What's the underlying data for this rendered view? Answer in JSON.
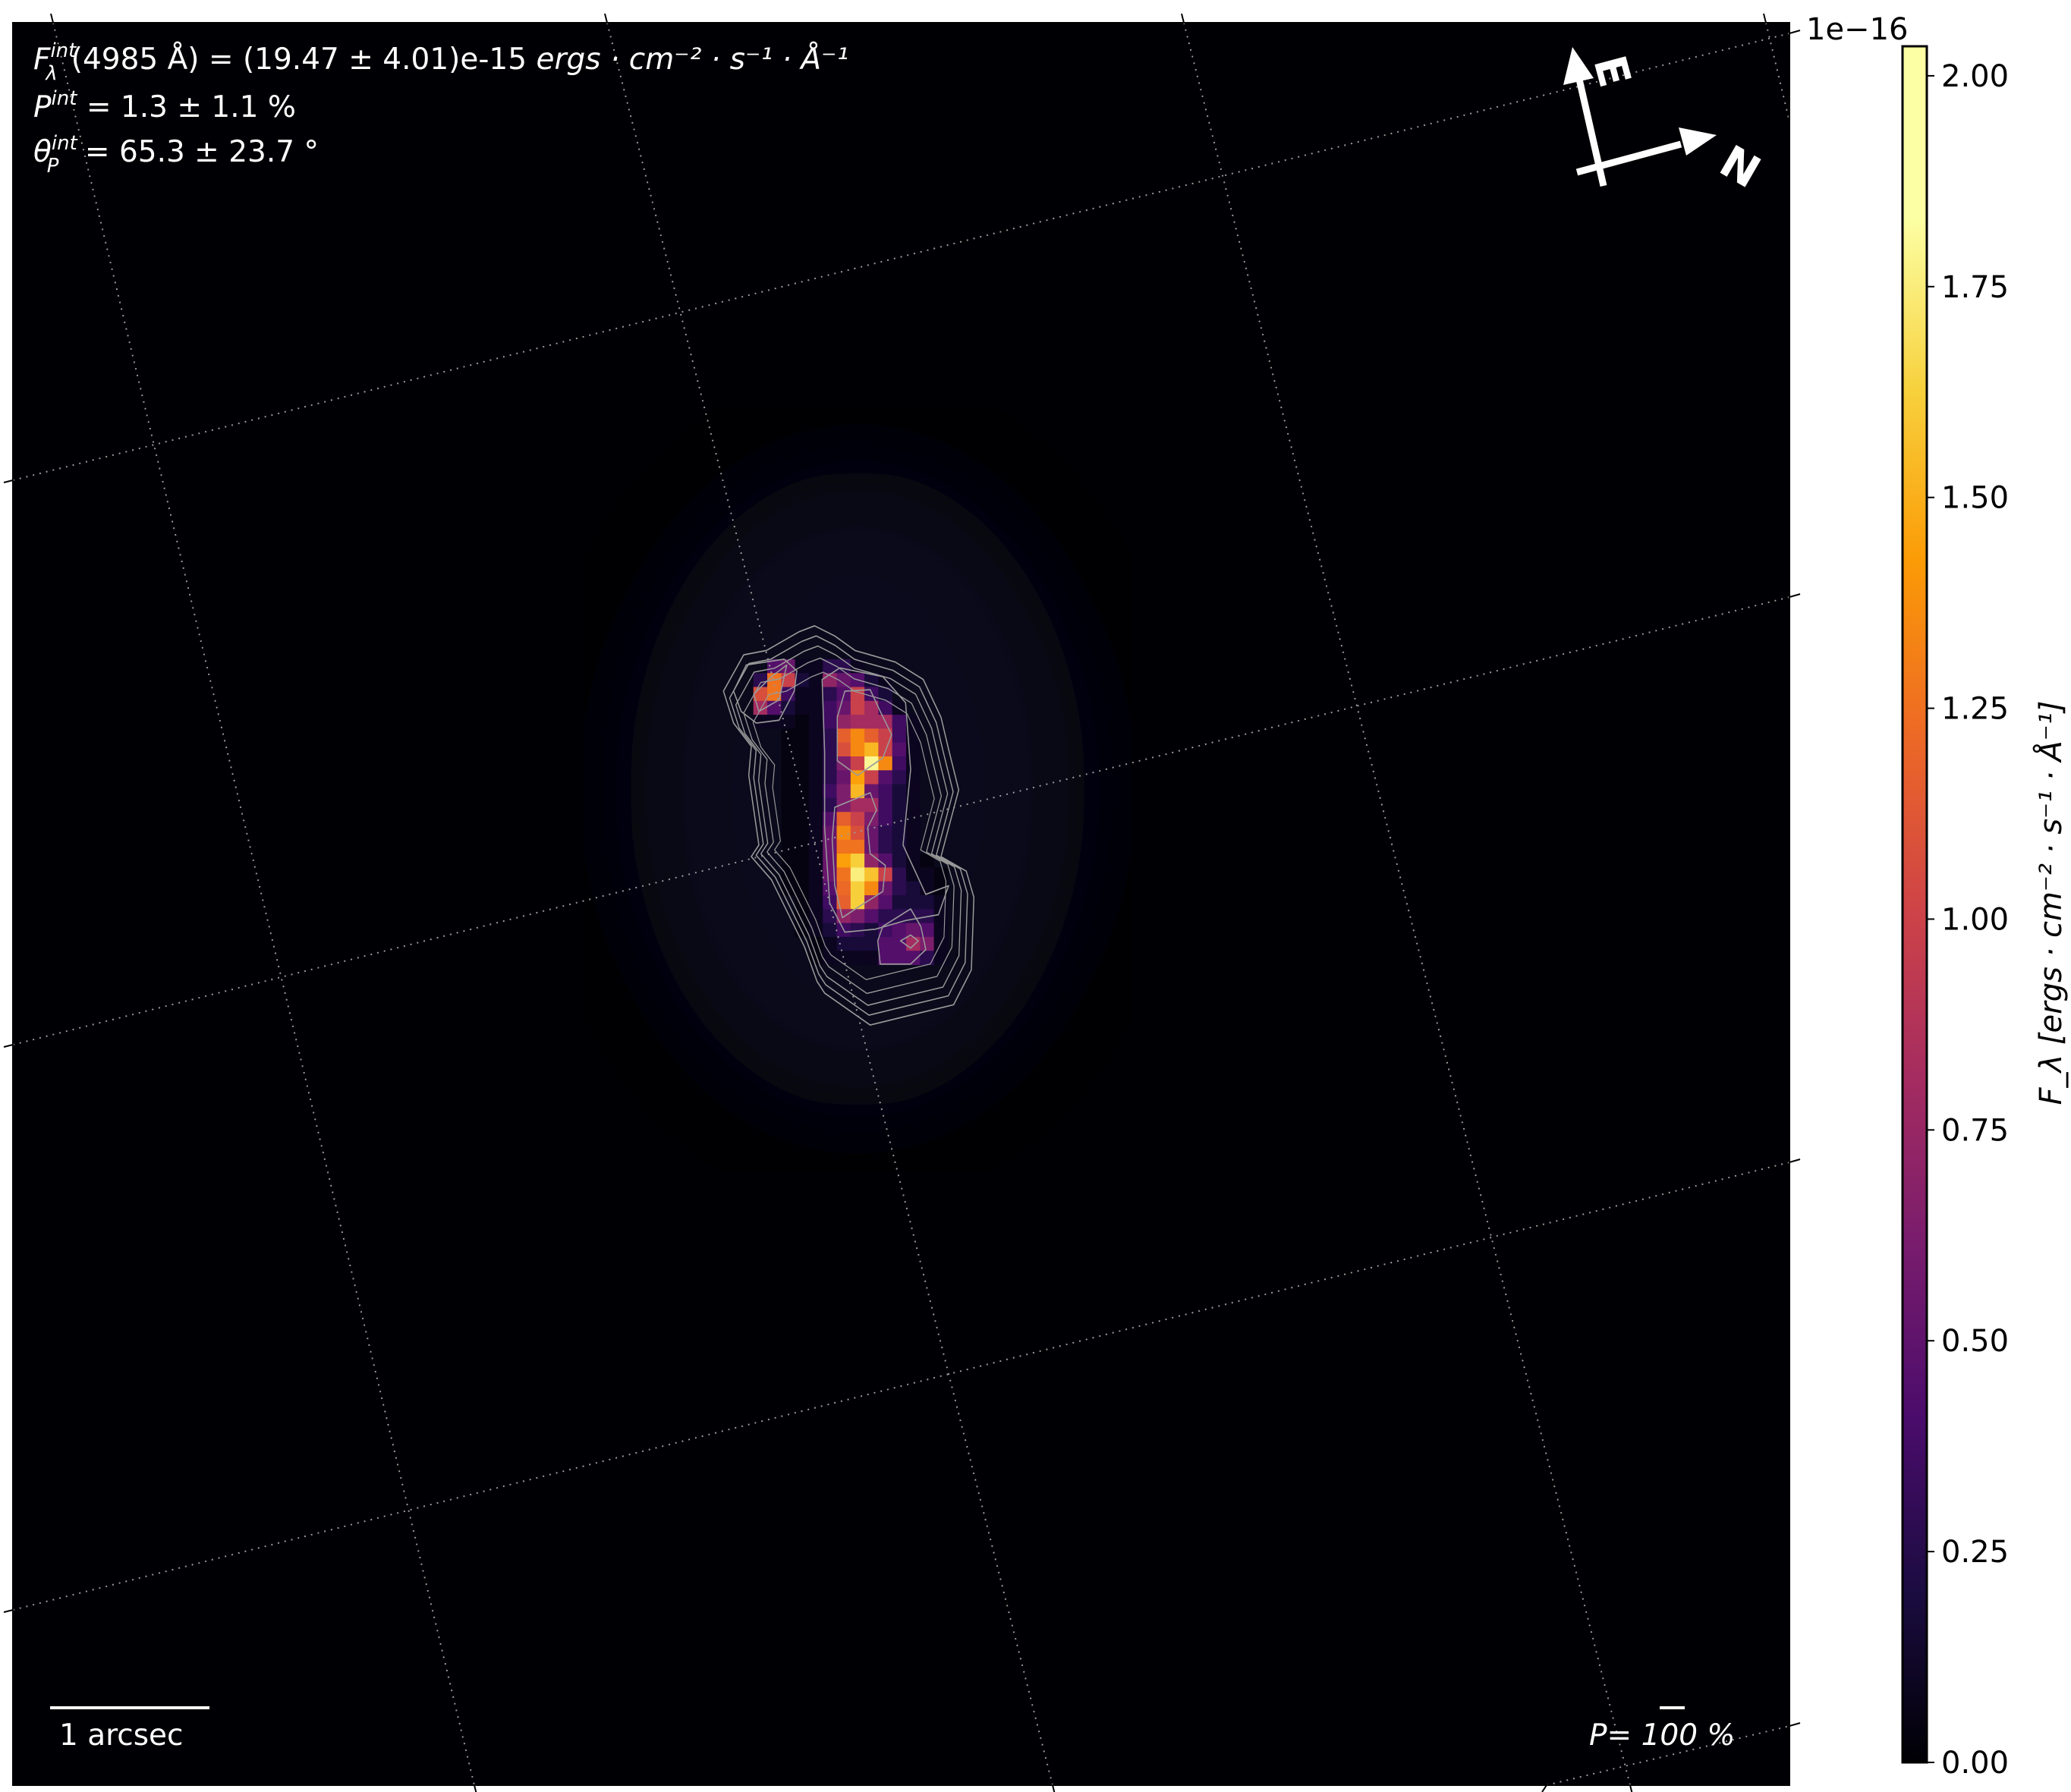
{
  "annotations": {
    "flux_label": "F",
    "flux_sup": "int",
    "flux_sub": "λ",
    "flux_text": "(4985 Å) = (19.47 ± 4.01)e-15 ",
    "flux_units": "ergs · cm⁻² · s⁻¹ · Å⁻¹",
    "pol_label": "P",
    "pol_sup": "int",
    "pol_text": " = 1.3 ± 1.1 %",
    "angle_label": "θ",
    "angle_sup": "int",
    "angle_sub": "P",
    "angle_text": " = 65.3 ± 23.7 °",
    "scalebar_label": "1 arcsec",
    "pol_scale_label": "P= 100 %",
    "compass_east": "E",
    "compass_north": "N"
  },
  "chart_data": {
    "type": "heatmap",
    "colormap": "inferno",
    "colorbar": {
      "label": "F_λ [ergs · cm⁻² · s⁻¹ · Å⁻¹]",
      "offset_text": "1e−16",
      "ticks": [
        "0.00",
        "0.25",
        "0.50",
        "0.75",
        "1.00",
        "1.25",
        "1.50",
        "1.75",
        "2.00"
      ],
      "range": [
        0,
        2.035
      ]
    },
    "grid": "dotted celestial coordinate grid",
    "values_1e-16": [
      [
        0,
        0.5,
        0.6,
        0.1,
        0.1,
        0.3,
        0.3,
        0.1,
        0,
        0,
        0,
        0,
        0,
        0
      ],
      [
        0.3,
        1.4,
        1.1,
        0.2,
        0.1,
        0.8,
        0.6,
        0.5,
        0.2,
        0.1,
        0,
        0,
        0,
        0
      ],
      [
        1.2,
        1.4,
        0.4,
        0.1,
        0.1,
        0.3,
        0.5,
        1.1,
        0.4,
        0.2,
        0,
        0,
        0,
        0
      ],
      [
        0.9,
        0.5,
        0.2,
        0.1,
        0.1,
        0.4,
        0.6,
        1.1,
        0.9,
        0.4,
        0.1,
        0,
        0,
        0
      ],
      [
        0.1,
        0.1,
        0.1,
        0.05,
        0.1,
        0.4,
        0.8,
        0.9,
        0.9,
        0.9,
        0.4,
        0.1,
        0,
        0
      ],
      [
        0,
        0,
        0.05,
        0.05,
        0.1,
        0.3,
        1.3,
        1.5,
        1.3,
        1.1,
        0.4,
        0.1,
        0,
        0
      ],
      [
        0,
        0,
        0.05,
        0.05,
        0.1,
        0.3,
        1.2,
        1.5,
        1.7,
        1.1,
        0.5,
        0.1,
        0,
        0
      ],
      [
        0,
        0,
        0.05,
        0.05,
        0.1,
        0.3,
        0.7,
        1.1,
        2.0,
        1.5,
        0.4,
        0.1,
        0,
        0
      ],
      [
        0,
        0,
        0.05,
        0.05,
        0.1,
        0.3,
        0.6,
        1.6,
        1.1,
        0.5,
        0.3,
        0.1,
        0,
        0
      ],
      [
        0,
        0,
        0.05,
        0.05,
        0.1,
        0.4,
        0.7,
        1.7,
        0.6,
        0.4,
        0.2,
        0.1,
        0,
        0
      ],
      [
        0,
        0,
        0.05,
        0.05,
        0.1,
        0.3,
        0.7,
        0.9,
        0.9,
        0.4,
        0.2,
        0.1,
        0,
        0
      ],
      [
        0,
        0,
        0.05,
        0.05,
        0.1,
        0.5,
        1.3,
        1.1,
        0.7,
        0.4,
        0.2,
        0.1,
        0,
        0
      ],
      [
        0,
        0,
        0.05,
        0.05,
        0.1,
        0.6,
        1.5,
        1.2,
        0.6,
        0.3,
        0.2,
        0.1,
        0,
        0
      ],
      [
        0,
        0,
        0.05,
        0.05,
        0.1,
        0.6,
        1.4,
        1.4,
        0.6,
        0.3,
        0.2,
        0.1,
        0,
        0
      ],
      [
        0,
        0,
        0.05,
        0.05,
        0.1,
        0.6,
        1.6,
        1.8,
        0.8,
        0.5,
        0.2,
        0.1,
        0.05,
        0
      ],
      [
        0,
        0,
        0.05,
        0.05,
        0.1,
        0.6,
        1.4,
        1.95,
        1.75,
        1.1,
        0.3,
        0.1,
        0.1,
        0.05
      ],
      [
        0,
        0,
        0.05,
        0.05,
        0.1,
        0.5,
        1.35,
        1.8,
        1.5,
        0.6,
        0.3,
        0.2,
        0.1,
        0.05
      ],
      [
        0,
        0,
        0,
        0.05,
        0.1,
        0.4,
        1.3,
        1.8,
        0.8,
        0.5,
        0.2,
        0.2,
        0.2,
        0.1
      ],
      [
        0,
        0,
        0,
        0.05,
        0.1,
        0.3,
        0.8,
        0.7,
        0.5,
        0.3,
        0.3,
        0.3,
        0.3,
        0.1
      ],
      [
        0,
        0,
        0,
        0.05,
        0.1,
        0.2,
        0.4,
        0.3,
        0.2,
        0.4,
        0.5,
        0.6,
        0.5,
        0.1
      ],
      [
        0,
        0,
        0,
        0,
        0.05,
        0.1,
        0.2,
        0.2,
        0.2,
        0.5,
        0.5,
        0.9,
        0.7,
        0.1
      ],
      [
        0,
        0,
        0,
        0,
        0.05,
        0.1,
        0.1,
        0.1,
        0.1,
        0.5,
        0.5,
        0.5,
        0.3,
        0.1
      ]
    ]
  }
}
